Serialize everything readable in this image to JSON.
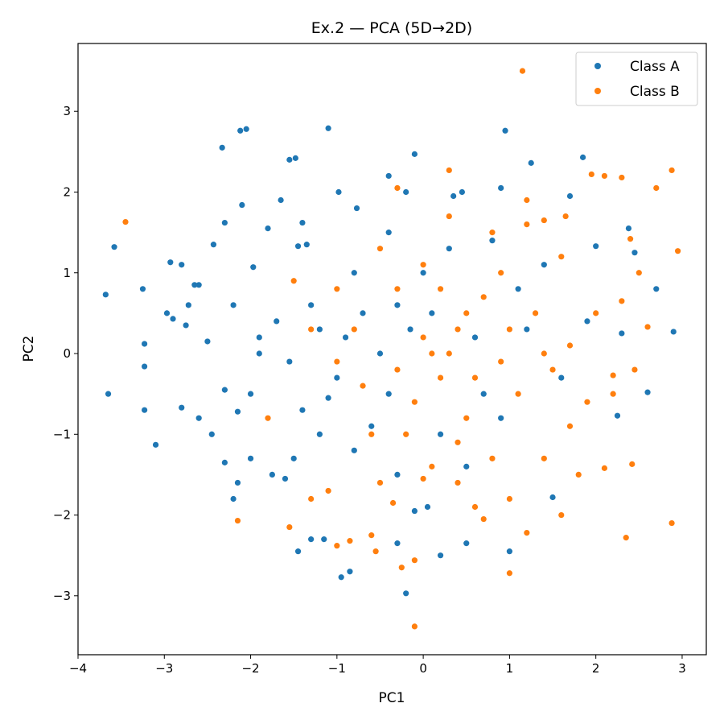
{
  "chart_data": {
    "type": "scatter",
    "title": "Ex.2 — PCA (5D→2D)",
    "xlabel": "PC1",
    "ylabel": "PC2",
    "xlim": [
      -4.0,
      3.28
    ],
    "ylim": [
      -3.73,
      3.84
    ],
    "xticks": [
      -4,
      -3,
      -2,
      -1,
      0,
      1,
      2,
      3
    ],
    "yticks": [
      -3,
      -2,
      -1,
      0,
      1,
      2,
      3
    ],
    "xtick_labels": [
      "−4",
      "−3",
      "−2",
      "−1",
      "0",
      "1",
      "2",
      "3"
    ],
    "ytick_labels": [
      "−3",
      "−2",
      "−1",
      "0",
      "1",
      "2",
      "3"
    ],
    "grid": false,
    "legend_position": "top-right",
    "series": [
      {
        "name": "Class A",
        "color": "#1f77b4",
        "points": [
          [
            -3.58,
            1.32
          ],
          [
            -3.68,
            0.73
          ],
          [
            -3.65,
            -0.5
          ],
          [
            -3.25,
            0.8
          ],
          [
            -3.23,
            0.12
          ],
          [
            -3.23,
            -0.16
          ],
          [
            -3.23,
            -0.7
          ],
          [
            -3.1,
            -1.13
          ],
          [
            -2.93,
            1.13
          ],
          [
            -2.8,
            1.1
          ],
          [
            -2.97,
            0.5
          ],
          [
            -2.9,
            0.43
          ],
          [
            -2.75,
            0.35
          ],
          [
            -2.72,
            0.6
          ],
          [
            -2.65,
            0.85
          ],
          [
            -2.6,
            0.85
          ],
          [
            -2.8,
            -0.67
          ],
          [
            -2.6,
            -0.8
          ],
          [
            -2.45,
            -1.0
          ],
          [
            -2.43,
            1.35
          ],
          [
            -2.3,
            1.62
          ],
          [
            -2.33,
            2.55
          ],
          [
            -2.2,
            -1.8
          ],
          [
            -2.12,
            2.76
          ],
          [
            -2.05,
            2.78
          ],
          [
            -2.1,
            1.84
          ],
          [
            -2.15,
            -1.6
          ],
          [
            -2.0,
            -1.3
          ],
          [
            -2.3,
            -1.35
          ],
          [
            -2.3,
            -0.45
          ],
          [
            -2.15,
            -0.72
          ],
          [
            -1.97,
            1.07
          ],
          [
            -1.8,
            1.55
          ],
          [
            -1.65,
            1.9
          ],
          [
            -1.55,
            2.4
          ],
          [
            -1.48,
            2.42
          ],
          [
            -1.45,
            1.33
          ],
          [
            -1.35,
            1.35
          ],
          [
            -1.4,
            1.62
          ],
          [
            -1.1,
            2.79
          ],
          [
            -0.98,
            2.0
          ],
          [
            -0.77,
            1.8
          ],
          [
            -0.4,
            2.2
          ],
          [
            -0.2,
            2.0
          ],
          [
            -0.1,
            2.47
          ],
          [
            0.35,
            1.95
          ],
          [
            0.45,
            2.0
          ],
          [
            0.95,
            2.76
          ],
          [
            0.9,
            2.05
          ],
          [
            1.25,
            2.36
          ],
          [
            1.7,
            1.95
          ],
          [
            1.85,
            2.43
          ],
          [
            2.0,
            1.33
          ],
          [
            2.38,
            1.55
          ],
          [
            2.45,
            1.25
          ],
          [
            2.7,
            0.8
          ],
          [
            2.9,
            0.27
          ],
          [
            2.6,
            -0.48
          ],
          [
            2.3,
            0.25
          ],
          [
            2.25,
            -0.77
          ],
          [
            1.5,
            -1.78
          ],
          [
            1.0,
            -2.45
          ],
          [
            0.2,
            -2.5
          ],
          [
            0.5,
            -2.35
          ],
          [
            -0.2,
            -2.97
          ],
          [
            -0.3,
            -2.35
          ],
          [
            -0.85,
            -2.7
          ],
          [
            -0.95,
            -2.77
          ],
          [
            -1.45,
            -2.45
          ],
          [
            -1.15,
            -2.3
          ],
          [
            -1.3,
            -2.3
          ],
          [
            -0.1,
            -1.95
          ],
          [
            0.05,
            -1.9
          ],
          [
            -1.75,
            -1.5
          ],
          [
            -1.6,
            -1.55
          ],
          [
            -1.5,
            -1.3
          ],
          [
            -1.55,
            -0.1
          ],
          [
            -1.2,
            0.3
          ],
          [
            -1.0,
            -0.3
          ],
          [
            -0.7,
            0.5
          ],
          [
            -0.5,
            0.0
          ],
          [
            -0.3,
            0.6
          ],
          [
            -0.8,
            1.0
          ],
          [
            -1.3,
            0.6
          ],
          [
            -1.7,
            0.4
          ],
          [
            -1.9,
            0.2
          ],
          [
            -2.0,
            -0.5
          ],
          [
            -1.9,
            0.0
          ],
          [
            -1.1,
            -0.55
          ],
          [
            -0.6,
            -0.9
          ],
          [
            -0.4,
            -0.5
          ],
          [
            0.1,
            0.5
          ],
          [
            0.3,
            1.3
          ],
          [
            0.6,
            0.2
          ],
          [
            0.9,
            -0.8
          ],
          [
            1.2,
            0.3
          ],
          [
            1.4,
            1.1
          ],
          [
            1.6,
            -0.3
          ],
          [
            1.9,
            0.4
          ],
          [
            0.7,
            -0.5
          ],
          [
            0.2,
            -1.0
          ],
          [
            -0.3,
            -1.5
          ],
          [
            -0.8,
            -1.2
          ],
          [
            -1.2,
            -1.0
          ],
          [
            0.5,
            -1.4
          ],
          [
            0.0,
            1.0
          ],
          [
            -0.4,
            1.5
          ],
          [
            0.8,
            1.4
          ],
          [
            1.1,
            0.8
          ],
          [
            -2.2,
            0.6
          ],
          [
            -2.5,
            0.15
          ],
          [
            -1.4,
            -0.7
          ],
          [
            -0.9,
            0.2
          ],
          [
            -0.15,
            0.3
          ]
        ]
      },
      {
        "name": "Class B",
        "color": "#ff7f0e",
        "points": [
          [
            -3.45,
            1.63
          ],
          [
            1.15,
            3.5
          ],
          [
            1.95,
            2.22
          ],
          [
            2.1,
            2.2
          ],
          [
            2.3,
            2.18
          ],
          [
            2.88,
            2.27
          ],
          [
            2.7,
            2.05
          ],
          [
            2.95,
            1.27
          ],
          [
            2.6,
            0.33
          ],
          [
            2.45,
            -0.2
          ],
          [
            2.2,
            -0.27
          ],
          [
            2.42,
            -1.37
          ],
          [
            2.35,
            -2.28
          ],
          [
            2.88,
            -2.1
          ],
          [
            2.1,
            -1.42
          ],
          [
            1.0,
            -2.72
          ],
          [
            1.2,
            -2.22
          ],
          [
            -0.1,
            -3.38
          ],
          [
            -0.1,
            -2.56
          ],
          [
            -0.25,
            -2.65
          ],
          [
            -0.55,
            -2.45
          ],
          [
            -1.0,
            -2.38
          ],
          [
            -0.85,
            -2.32
          ],
          [
            -0.6,
            -2.25
          ],
          [
            -2.15,
            -2.07
          ],
          [
            -1.55,
            -2.15
          ],
          [
            -1.8,
            -0.8
          ],
          [
            -1.3,
            -1.8
          ],
          [
            -1.1,
            -1.7
          ],
          [
            -1.5,
            0.9
          ],
          [
            -1.3,
            0.3
          ],
          [
            -1.0,
            0.8
          ],
          [
            -0.6,
            -1.0
          ],
          [
            -0.3,
            -0.2
          ],
          [
            0.0,
            0.2
          ],
          [
            0.2,
            -0.3
          ],
          [
            0.4,
            0.3
          ],
          [
            0.5,
            -0.8
          ],
          [
            0.7,
            0.7
          ],
          [
            0.9,
            -0.1
          ],
          [
            1.1,
            -0.5
          ],
          [
            1.3,
            0.5
          ],
          [
            1.5,
            -0.2
          ],
          [
            1.7,
            0.1
          ],
          [
            1.9,
            -0.6
          ],
          [
            2.0,
            0.5
          ],
          [
            1.6,
            1.2
          ],
          [
            1.2,
            1.6
          ],
          [
            0.8,
            1.5
          ],
          [
            0.3,
            1.7
          ],
          [
            0.0,
            1.1
          ],
          [
            -0.3,
            0.8
          ],
          [
            -0.5,
            1.3
          ],
          [
            -0.7,
            -0.4
          ],
          [
            -0.2,
            -1.0
          ],
          [
            0.1,
            -1.4
          ],
          [
            0.4,
            -1.1
          ],
          [
            0.8,
            -1.3
          ],
          [
            1.0,
            -1.8
          ],
          [
            1.4,
            -1.3
          ],
          [
            1.7,
            -0.9
          ],
          [
            2.2,
            -0.5
          ],
          [
            0.6,
            -1.9
          ],
          [
            -0.5,
            -1.6
          ],
          [
            0.2,
            0.8
          ],
          [
            0.5,
            0.5
          ],
          [
            0.3,
            0.0
          ],
          [
            0.6,
            -0.3
          ],
          [
            1.0,
            0.3
          ],
          [
            1.4,
            0.0
          ],
          [
            -0.1,
            -0.6
          ],
          [
            0.1,
            0.0
          ],
          [
            -0.8,
            0.3
          ],
          [
            -1.0,
            -0.1
          ],
          [
            0.9,
            1.0
          ],
          [
            1.8,
            -1.5
          ],
          [
            2.3,
            0.65
          ],
          [
            2.5,
            1.0
          ],
          [
            2.4,
            1.42
          ],
          [
            0.3,
            2.27
          ],
          [
            -0.3,
            2.05
          ],
          [
            1.2,
            1.9
          ],
          [
            1.4,
            1.65
          ],
          [
            0.7,
            -2.05
          ],
          [
            0.4,
            -1.6
          ],
          [
            -0.35,
            -1.85
          ],
          [
            0.0,
            -1.55
          ],
          [
            1.65,
            1.7
          ],
          [
            1.6,
            -2.0
          ]
        ]
      }
    ]
  }
}
